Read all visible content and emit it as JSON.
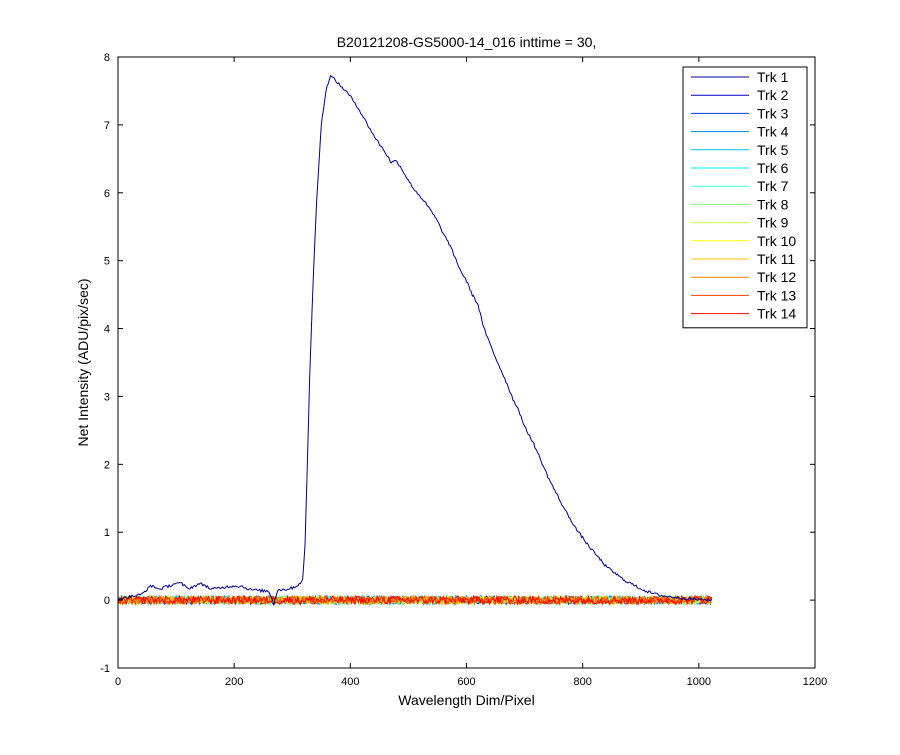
{
  "chart_data": {
    "type": "line",
    "title": "B20121208-GS5000-14_016 inttime = 30,",
    "xlabel": "Wavelength Dim/Pixel",
    "ylabel": "Net Intensity (ADU/pix/sec)",
    "xlim": [
      0,
      1200
    ],
    "ylim": [
      -1,
      8
    ],
    "xticks": [
      0,
      200,
      400,
      600,
      800,
      1000,
      1200
    ],
    "yticks": [
      -1,
      0,
      1,
      2,
      3,
      4,
      5,
      6,
      7,
      8
    ],
    "xtick_labels": [
      "0",
      "200",
      "400",
      "600",
      "800",
      "1000",
      "1200"
    ],
    "ytick_labels": [
      "-1",
      "0",
      "1",
      "2",
      "3",
      "4",
      "5",
      "6",
      "7",
      "8"
    ],
    "grid": false,
    "legend_position": "top-right",
    "x_range": [
      0,
      1023
    ],
    "series": [
      {
        "name": "Trk 1",
        "color": "#00008F",
        "points": [
          [
            0,
            0.02
          ],
          [
            20,
            0.05
          ],
          [
            40,
            0.08
          ],
          [
            55,
            0.2
          ],
          [
            60,
            0.21
          ],
          [
            70,
            0.16
          ],
          [
            85,
            0.2
          ],
          [
            100,
            0.25
          ],
          [
            110,
            0.24
          ],
          [
            120,
            0.17
          ],
          [
            130,
            0.2
          ],
          [
            140,
            0.24
          ],
          [
            150,
            0.22
          ],
          [
            160,
            0.16
          ],
          [
            175,
            0.18
          ],
          [
            190,
            0.2
          ],
          [
            200,
            0.21
          ],
          [
            215,
            0.2
          ],
          [
            225,
            0.16
          ],
          [
            245,
            0.14
          ],
          [
            260,
            0.13
          ],
          [
            268,
            -0.05
          ],
          [
            275,
            0.15
          ],
          [
            290,
            0.16
          ],
          [
            300,
            0.18
          ],
          [
            310,
            0.22
          ],
          [
            318,
            0.3
          ],
          [
            322,
            0.8
          ],
          [
            326,
            2.0
          ],
          [
            330,
            3.3
          ],
          [
            336,
            4.7
          ],
          [
            342,
            5.9
          ],
          [
            350,
            7.0
          ],
          [
            358,
            7.5
          ],
          [
            365,
            7.72
          ],
          [
            372,
            7.68
          ],
          [
            380,
            7.6
          ],
          [
            390,
            7.52
          ],
          [
            400,
            7.42
          ],
          [
            410,
            7.3
          ],
          [
            420,
            7.15
          ],
          [
            430,
            7.0
          ],
          [
            440,
            6.85
          ],
          [
            450,
            6.72
          ],
          [
            460,
            6.6
          ],
          [
            470,
            6.45
          ],
          [
            480,
            6.47
          ],
          [
            490,
            6.33
          ],
          [
            500,
            6.18
          ],
          [
            510,
            6.05
          ],
          [
            520,
            5.95
          ],
          [
            530,
            5.84
          ],
          [
            540,
            5.72
          ],
          [
            550,
            5.58
          ],
          [
            560,
            5.4
          ],
          [
            570,
            5.25
          ],
          [
            580,
            5.05
          ],
          [
            590,
            4.85
          ],
          [
            600,
            4.7
          ],
          [
            610,
            4.5
          ],
          [
            620,
            4.35
          ],
          [
            630,
            4.0
          ],
          [
            640,
            3.78
          ],
          [
            650,
            3.57
          ],
          [
            660,
            3.38
          ],
          [
            670,
            3.18
          ],
          [
            680,
            2.96
          ],
          [
            690,
            2.8
          ],
          [
            700,
            2.55
          ],
          [
            710,
            2.4
          ],
          [
            720,
            2.22
          ],
          [
            730,
            2.02
          ],
          [
            740,
            1.82
          ],
          [
            750,
            1.65
          ],
          [
            760,
            1.48
          ],
          [
            770,
            1.32
          ],
          [
            780,
            1.18
          ],
          [
            790,
            1.03
          ],
          [
            800,
            0.92
          ],
          [
            810,
            0.8
          ],
          [
            820,
            0.7
          ],
          [
            830,
            0.6
          ],
          [
            840,
            0.5
          ],
          [
            850,
            0.43
          ],
          [
            860,
            0.37
          ],
          [
            870,
            0.3
          ],
          [
            880,
            0.26
          ],
          [
            890,
            0.21
          ],
          [
            900,
            0.17
          ],
          [
            910,
            0.13
          ],
          [
            920,
            0.1
          ],
          [
            930,
            0.08
          ],
          [
            940,
            0.06
          ],
          [
            950,
            0.05
          ],
          [
            960,
            0.04
          ],
          [
            970,
            0.03
          ],
          [
            980,
            0.02
          ],
          [
            1000,
            0.01
          ],
          [
            1023,
            0.0
          ]
        ]
      },
      {
        "name": "Trk 2",
        "color": "#0000C8",
        "level": 0.0
      },
      {
        "name": "Trk 3",
        "color": "#0040FF",
        "level": 0.0
      },
      {
        "name": "Trk 4",
        "color": "#0080FF",
        "level": 0.0
      },
      {
        "name": "Trk 5",
        "color": "#00BFFF",
        "level": 0.0
      },
      {
        "name": "Trk 6",
        "color": "#00E8FF",
        "level": 0.0
      },
      {
        "name": "Trk 7",
        "color": "#40FFDF",
        "level": 0.0
      },
      {
        "name": "Trk 8",
        "color": "#80FF80",
        "level": 0.0
      },
      {
        "name": "Trk 9",
        "color": "#BFFF40",
        "level": 0.0
      },
      {
        "name": "Trk 10",
        "color": "#FFFF00",
        "level": 0.0
      },
      {
        "name": "Trk 11",
        "color": "#FFBF00",
        "level": 0.0
      },
      {
        "name": "Trk 12",
        "color": "#FF8000",
        "level": 0.0
      },
      {
        "name": "Trk 13",
        "color": "#FF4000",
        "level": 0.0
      },
      {
        "name": "Trk 14",
        "color": "#FF0000",
        "level": 0.0
      }
    ]
  }
}
